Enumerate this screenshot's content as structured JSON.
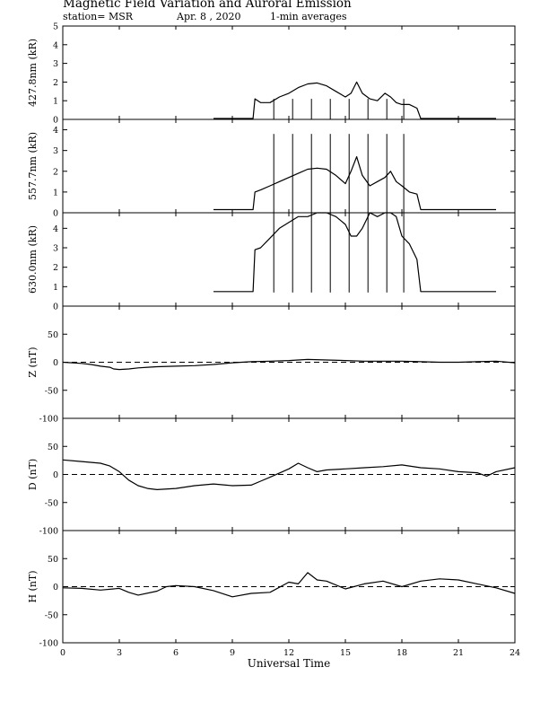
{
  "header": {
    "title": "Magnetic Field Variation and Auroral Emission",
    "station": "station= MSR",
    "date": "Apr. 8  , 2020",
    "averaging": "1-min averages"
  },
  "chart_data": {
    "type": "line",
    "xlabel": "Universal Time",
    "xlim": [
      0,
      24
    ],
    "xticks": [
      0,
      3,
      6,
      9,
      12,
      15,
      18,
      21,
      24
    ],
    "panels": [
      {
        "id": "427.8nm",
        "ylabel": "427.8nm (kR)",
        "ylim": [
          0,
          5
        ],
        "yticks": [
          0,
          1,
          2,
          3,
          4,
          5
        ],
        "series": [
          {
            "x": [
              8.0,
              10.1,
              10.2,
              10.5,
              11.0,
              11.5,
              12.0,
              12.5,
              13.0,
              13.5,
              14.0,
              14.5,
              15.0,
              15.3,
              15.6,
              15.9,
              16.3,
              16.7,
              17.1,
              17.4,
              17.7,
              18.0,
              18.4,
              18.8,
              19.0,
              19.5,
              21.0,
              23.0
            ],
            "y": [
              0.05,
              0.05,
              1.1,
              0.9,
              0.9,
              1.2,
              1.4,
              1.7,
              1.9,
              1.95,
              1.8,
              1.5,
              1.2,
              1.4,
              2.0,
              1.4,
              1.1,
              1.0,
              1.4,
              1.2,
              0.9,
              0.8,
              0.8,
              0.6,
              0.05,
              0.05,
              0.05,
              0.05
            ]
          }
        ],
        "spikes": {
          "x": [
            11.2,
            12.2,
            13.2,
            14.2,
            15.2,
            16.2,
            17.2,
            18.1
          ],
          "top": 1.1
        }
      },
      {
        "id": "557.7nm",
        "ylabel": "557.7nm (kR)",
        "ylim": [
          0,
          4.5
        ],
        "yticks": [
          0,
          1,
          2,
          3,
          4
        ],
        "series": [
          {
            "x": [
              8.0,
              10.1,
              10.2,
              10.5,
              11.0,
              11.5,
              12.0,
              12.5,
              13.0,
              13.5,
              14.0,
              14.5,
              15.0,
              15.3,
              15.6,
              15.9,
              16.3,
              16.7,
              17.1,
              17.4,
              17.7,
              18.0,
              18.4,
              18.8,
              19.0,
              19.5,
              21.0,
              23.0
            ],
            "y": [
              0.15,
              0.15,
              1.0,
              1.1,
              1.3,
              1.5,
              1.7,
              1.9,
              2.1,
              2.15,
              2.1,
              1.8,
              1.4,
              2.0,
              2.7,
              1.8,
              1.3,
              1.5,
              1.7,
              2.0,
              1.5,
              1.3,
              1.0,
              0.9,
              0.15,
              0.15,
              0.15,
              0.15
            ]
          }
        ],
        "spikes": {
          "x": [
            11.2,
            12.2,
            13.2,
            14.2,
            15.2,
            16.2,
            17.2,
            18.1
          ],
          "top": 3.8
        }
      },
      {
        "id": "630.0nm",
        "ylabel": "630.0nm (kR)",
        "ylim": [
          0,
          4.8
        ],
        "yticks": [
          0,
          1,
          2,
          3,
          4
        ],
        "series": [
          {
            "x": [
              8.0,
              10.1,
              10.2,
              10.5,
              11.0,
              11.5,
              12.0,
              12.5,
              13.0,
              13.5,
              14.0,
              14.5,
              15.0,
              15.3,
              15.6,
              15.9,
              16.3,
              16.7,
              17.1,
              17.4,
              17.7,
              18.0,
              18.4,
              18.8,
              19.0,
              19.5,
              21.0,
              23.0
            ],
            "y": [
              0.75,
              0.75,
              2.9,
              3.0,
              3.5,
              4.0,
              4.3,
              4.6,
              4.6,
              4.8,
              4.8,
              4.6,
              4.2,
              3.6,
              3.6,
              4.0,
              4.8,
              4.6,
              4.8,
              4.8,
              4.6,
              3.6,
              3.2,
              2.4,
              0.75,
              0.75,
              0.75,
              0.75
            ]
          }
        ],
        "spikes": {
          "x": [
            11.2,
            12.2,
            13.2,
            14.2,
            15.2,
            16.2,
            17.2,
            18.1
          ],
          "top": 4.8,
          "bottom": 0.7
        }
      },
      {
        "id": "Z",
        "ylabel": "Z (nT)",
        "ylim": [
          -100,
          100
        ],
        "yticks": [
          -100,
          -50,
          0,
          50
        ],
        "zero_line": true,
        "series": [
          {
            "x": [
              0,
              0.5,
              1,
              1.5,
              2,
              2.5,
              2.7,
              3,
              3.5,
              4,
              4.5,
              5,
              6,
              7,
              8,
              9,
              10,
              11,
              12,
              13,
              14,
              15,
              16,
              17,
              18,
              19,
              20,
              21,
              22,
              23,
              24
            ],
            "y": [
              0,
              -1,
              -2,
              -4,
              -7,
              -9,
              -12,
              -13,
              -12,
              -10,
              -9,
              -8,
              -7,
              -6,
              -4,
              -1,
              1,
              2,
              3,
              5,
              4,
              3,
              2,
              2,
              2,
              1,
              0,
              0,
              1,
              2,
              -1
            ]
          }
        ]
      },
      {
        "id": "D",
        "ylabel": "D (nT)",
        "ylim": [
          -100,
          100
        ],
        "yticks": [
          -100,
          -50,
          0,
          50
        ],
        "zero_line": true,
        "series": [
          {
            "x": [
              0,
              1,
              2,
              2.5,
              3,
              3.5,
              4,
              4.5,
              5,
              6,
              7,
              8,
              9,
              10,
              10.5,
              11,
              12,
              12.5,
              13,
              13.5,
              14,
              15,
              16,
              17,
              18,
              19,
              20,
              21,
              22,
              22.5,
              23,
              24
            ],
            "y": [
              26,
              23,
              20,
              15,
              5,
              -10,
              -20,
              -25,
              -27,
              -25,
              -20,
              -17,
              -20,
              -19,
              -12,
              -5,
              10,
              20,
              12,
              5,
              8,
              10,
              12,
              14,
              17,
              12,
              10,
              5,
              3,
              -3,
              5,
              12
            ]
          }
        ]
      },
      {
        "id": "H",
        "ylabel": "H (nT)",
        "ylim": [
          -100,
          100
        ],
        "yticks": [
          -100,
          -50,
          0,
          50
        ],
        "zero_line": true,
        "series": [
          {
            "x": [
              0,
              1,
              2,
              3,
              3.5,
              4,
              5,
              5.5,
              6,
              7,
              8,
              9,
              10,
              11,
              12,
              12.5,
              13,
              13.5,
              14,
              15,
              16,
              17,
              18,
              19,
              20,
              21,
              22,
              23,
              24
            ],
            "y": [
              -2,
              -3,
              -6,
              -3,
              -10,
              -15,
              -8,
              0,
              2,
              0,
              -7,
              -18,
              -12,
              -10,
              8,
              5,
              25,
              12,
              10,
              -4,
              5,
              10,
              0,
              10,
              14,
              12,
              5,
              -2,
              -12
            ]
          }
        ]
      }
    ]
  }
}
